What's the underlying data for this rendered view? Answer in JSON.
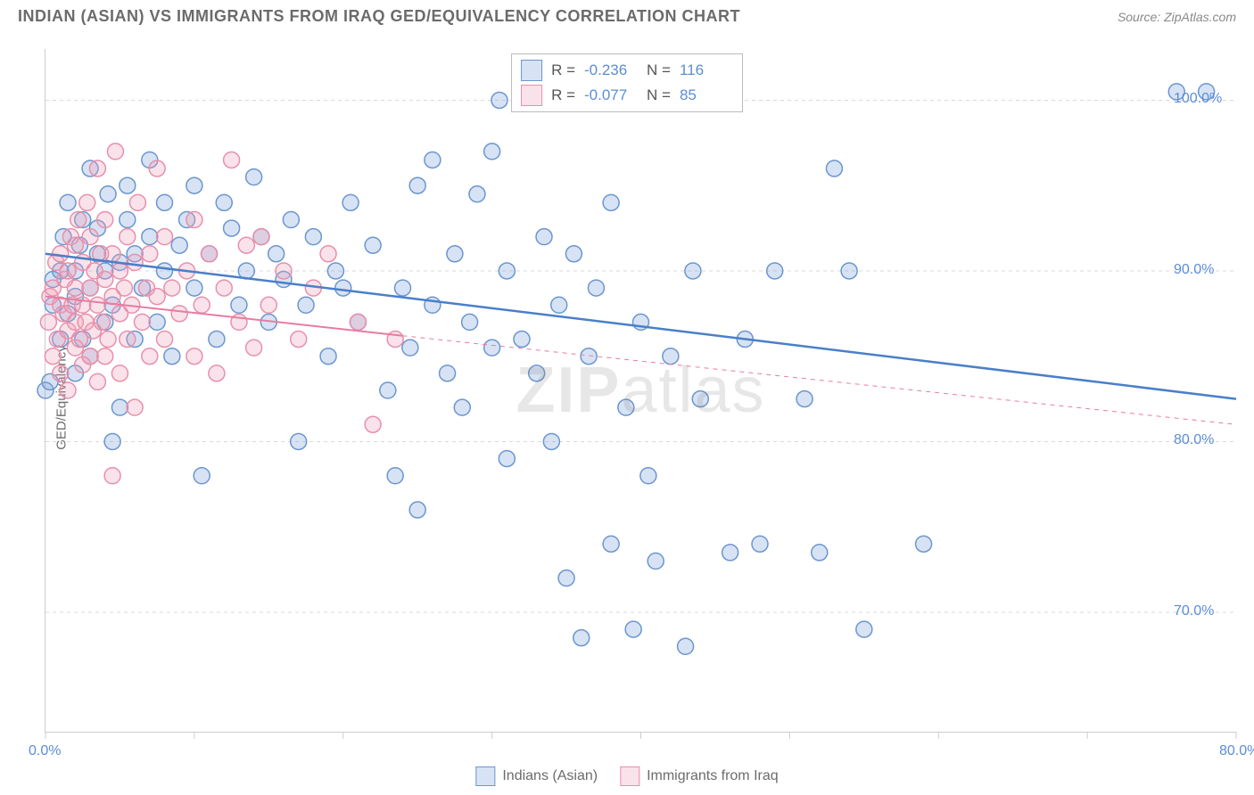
{
  "header": {
    "title": "INDIAN (ASIAN) VS IMMIGRANTS FROM IRAQ GED/EQUIVALENCY CORRELATION CHART",
    "source": "Source: ZipAtlas.com"
  },
  "watermark": {
    "bold": "ZIP",
    "light": "atlas"
  },
  "chart": {
    "type": "scatter",
    "ylabel": "GED/Equivalency",
    "background_color": "#ffffff",
    "grid_color": "#d9d9d9",
    "axis_color": "#cccccc",
    "tick_label_color": "#5b8dd6",
    "xlim": [
      0,
      80
    ],
    "ylim": [
      63,
      103
    ],
    "xticks": [
      0,
      10,
      20,
      30,
      40,
      50,
      60,
      70,
      80
    ],
    "xtick_labels": {
      "0": "0.0%",
      "80": "80.0%"
    },
    "yticks": [
      70,
      80,
      90,
      100
    ],
    "ytick_labels": {
      "70": "70.0%",
      "80": "80.0%",
      "90": "90.0%",
      "100": "100.0%"
    },
    "marker_style": "circle",
    "marker_radius": 9,
    "marker_stroke_width": 1.5,
    "fill_opacity": 0.25,
    "series": [
      {
        "name": "Indians (Asian)",
        "color": "#7ba3d9",
        "fill": "rgba(123,163,217,0.30)",
        "stroke": "#6b96d0",
        "R": "-0.236",
        "N": "116",
        "regression": {
          "x1": 0,
          "y1": 91.0,
          "x2": 80,
          "y2": 82.5,
          "dash": "none",
          "width": 2.5,
          "extrapolate_dash": false
        },
        "points": [
          [
            0,
            83
          ],
          [
            0.5,
            88
          ],
          [
            0.5,
            89.5
          ],
          [
            1,
            86
          ],
          [
            1,
            90
          ],
          [
            1.2,
            92
          ],
          [
            1.5,
            87.5
          ],
          [
            1.5,
            94
          ],
          [
            2,
            84
          ],
          [
            2,
            88.5
          ],
          [
            2,
            90
          ],
          [
            2.3,
            91.5
          ],
          [
            2.5,
            86
          ],
          [
            2.5,
            93
          ],
          [
            3,
            85
          ],
          [
            3,
            89
          ],
          [
            3,
            96
          ],
          [
            3.5,
            91
          ],
          [
            3.5,
            92.5
          ],
          [
            4,
            87
          ],
          [
            4,
            90
          ],
          [
            4.2,
            94.5
          ],
          [
            4.5,
            80
          ],
          [
            4.5,
            88
          ],
          [
            5,
            82
          ],
          [
            5,
            90.5
          ],
          [
            5.5,
            93
          ],
          [
            5.5,
            95
          ],
          [
            6,
            86
          ],
          [
            6,
            91
          ],
          [
            6.5,
            89
          ],
          [
            7,
            92
          ],
          [
            7,
            96.5
          ],
          [
            7.5,
            87
          ],
          [
            8,
            90
          ],
          [
            8,
            94
          ],
          [
            8.5,
            85
          ],
          [
            9,
            91.5
          ],
          [
            9.5,
            93
          ],
          [
            10,
            89
          ],
          [
            10,
            95
          ],
          [
            10.5,
            78
          ],
          [
            11,
            91
          ],
          [
            11.5,
            86
          ],
          [
            12,
            94
          ],
          [
            12.5,
            92.5
          ],
          [
            13,
            88
          ],
          [
            13.5,
            90
          ],
          [
            14,
            95.5
          ],
          [
            14.5,
            92
          ],
          [
            15,
            87
          ],
          [
            15.5,
            91
          ],
          [
            16,
            89.5
          ],
          [
            16.5,
            93
          ],
          [
            17,
            80
          ],
          [
            17.5,
            88
          ],
          [
            18,
            92
          ],
          [
            19,
            85
          ],
          [
            19.5,
            90
          ],
          [
            20,
            89
          ],
          [
            20.5,
            94
          ],
          [
            21,
            87
          ],
          [
            22,
            91.5
          ],
          [
            23,
            83
          ],
          [
            23.5,
            78
          ],
          [
            24,
            89
          ],
          [
            24.5,
            85.5
          ],
          [
            25,
            76
          ],
          [
            25,
            95
          ],
          [
            26,
            88
          ],
          [
            26,
            96.5
          ],
          [
            27,
            84
          ],
          [
            27.5,
            91
          ],
          [
            28,
            82
          ],
          [
            28.5,
            87
          ],
          [
            29,
            94.5
          ],
          [
            30,
            85.5
          ],
          [
            30,
            97
          ],
          [
            30.5,
            100
          ],
          [
            31,
            79
          ],
          [
            31,
            90
          ],
          [
            32,
            86
          ],
          [
            33,
            84
          ],
          [
            33.5,
            92
          ],
          [
            34,
            80
          ],
          [
            34.5,
            88
          ],
          [
            35,
            72
          ],
          [
            35.5,
            91
          ],
          [
            36,
            68.5
          ],
          [
            36.5,
            85
          ],
          [
            37,
            89
          ],
          [
            38,
            74
          ],
          [
            38,
            94
          ],
          [
            39,
            82
          ],
          [
            39.5,
            69
          ],
          [
            40,
            87
          ],
          [
            40.5,
            78
          ],
          [
            41,
            73
          ],
          [
            42,
            85
          ],
          [
            43,
            68
          ],
          [
            43.5,
            90
          ],
          [
            44,
            82.5
          ],
          [
            45,
            100
          ],
          [
            46,
            73.5
          ],
          [
            47,
            86
          ],
          [
            48,
            74
          ],
          [
            49,
            90
          ],
          [
            51,
            82.5
          ],
          [
            52,
            73.5
          ],
          [
            53,
            96
          ],
          [
            54,
            90
          ],
          [
            55,
            69
          ],
          [
            59,
            74
          ],
          [
            76,
            100.5
          ],
          [
            78,
            100.5
          ],
          [
            0.3,
            83.5
          ]
        ]
      },
      {
        "name": "Immigrants from Iraq",
        "color": "#f0a0b8",
        "fill": "rgba(240,160,184,0.30)",
        "stroke": "#e890aa",
        "R": "-0.077",
        "N": "85",
        "regression": {
          "x1": 0,
          "y1": 88.5,
          "x2": 24,
          "y2": 86.2,
          "extrapolate_to": 80,
          "extrapolate_y": 81,
          "dash_extrap": "5,5",
          "width": 2
        },
        "points": [
          [
            0.2,
            87
          ],
          [
            0.3,
            88.5
          ],
          [
            0.5,
            85
          ],
          [
            0.5,
            89
          ],
          [
            0.7,
            90.5
          ],
          [
            0.8,
            86
          ],
          [
            1,
            84
          ],
          [
            1,
            88
          ],
          [
            1,
            91
          ],
          [
            1.2,
            87.5
          ],
          [
            1.3,
            89.5
          ],
          [
            1.5,
            83
          ],
          [
            1.5,
            86.5
          ],
          [
            1.5,
            90
          ],
          [
            1.7,
            92
          ],
          [
            1.8,
            88
          ],
          [
            2,
            85.5
          ],
          [
            2,
            87
          ],
          [
            2,
            89
          ],
          [
            2,
            91.5
          ],
          [
            2.2,
            93
          ],
          [
            2.3,
            86
          ],
          [
            2.5,
            84.5
          ],
          [
            2.5,
            88
          ],
          [
            2.5,
            90.5
          ],
          [
            2.7,
            87
          ],
          [
            2.8,
            94
          ],
          [
            3,
            85
          ],
          [
            3,
            89
          ],
          [
            3,
            92
          ],
          [
            3.2,
            86.5
          ],
          [
            3.3,
            90
          ],
          [
            3.5,
            83.5
          ],
          [
            3.5,
            88
          ],
          [
            3.5,
            96
          ],
          [
            3.7,
            91
          ],
          [
            3.8,
            87
          ],
          [
            4,
            85
          ],
          [
            4,
            89.5
          ],
          [
            4,
            93
          ],
          [
            4.2,
            86
          ],
          [
            4.5,
            78
          ],
          [
            4.5,
            88.5
          ],
          [
            4.5,
            91
          ],
          [
            4.7,
            97
          ],
          [
            5,
            84
          ],
          [
            5,
            87.5
          ],
          [
            5,
            90
          ],
          [
            5.3,
            89
          ],
          [
            5.5,
            86
          ],
          [
            5.5,
            92
          ],
          [
            5.8,
            88
          ],
          [
            6,
            82
          ],
          [
            6,
            90.5
          ],
          [
            6.2,
            94
          ],
          [
            6.5,
            87
          ],
          [
            6.8,
            89
          ],
          [
            7,
            85
          ],
          [
            7,
            91
          ],
          [
            7.5,
            88.5
          ],
          [
            7.5,
            96
          ],
          [
            8,
            86
          ],
          [
            8,
            92
          ],
          [
            8.5,
            89
          ],
          [
            9,
            87.5
          ],
          [
            9.5,
            90
          ],
          [
            10,
            85
          ],
          [
            10,
            93
          ],
          [
            10.5,
            88
          ],
          [
            11,
            91
          ],
          [
            11.5,
            84
          ],
          [
            12,
            89
          ],
          [
            12.5,
            96.5
          ],
          [
            13,
            87
          ],
          [
            13.5,
            91.5
          ],
          [
            14,
            85.5
          ],
          [
            14.5,
            92
          ],
          [
            15,
            88
          ],
          [
            16,
            90
          ],
          [
            17,
            86
          ],
          [
            18,
            89
          ],
          [
            19,
            91
          ],
          [
            21,
            87
          ],
          [
            22,
            81
          ],
          [
            23.5,
            86
          ]
        ]
      }
    ]
  },
  "legend": {
    "bottom": [
      {
        "label": "Indians (Asian)",
        "color_idx": 0
      },
      {
        "label": "Immigrants from Iraq",
        "color_idx": 1
      }
    ]
  }
}
